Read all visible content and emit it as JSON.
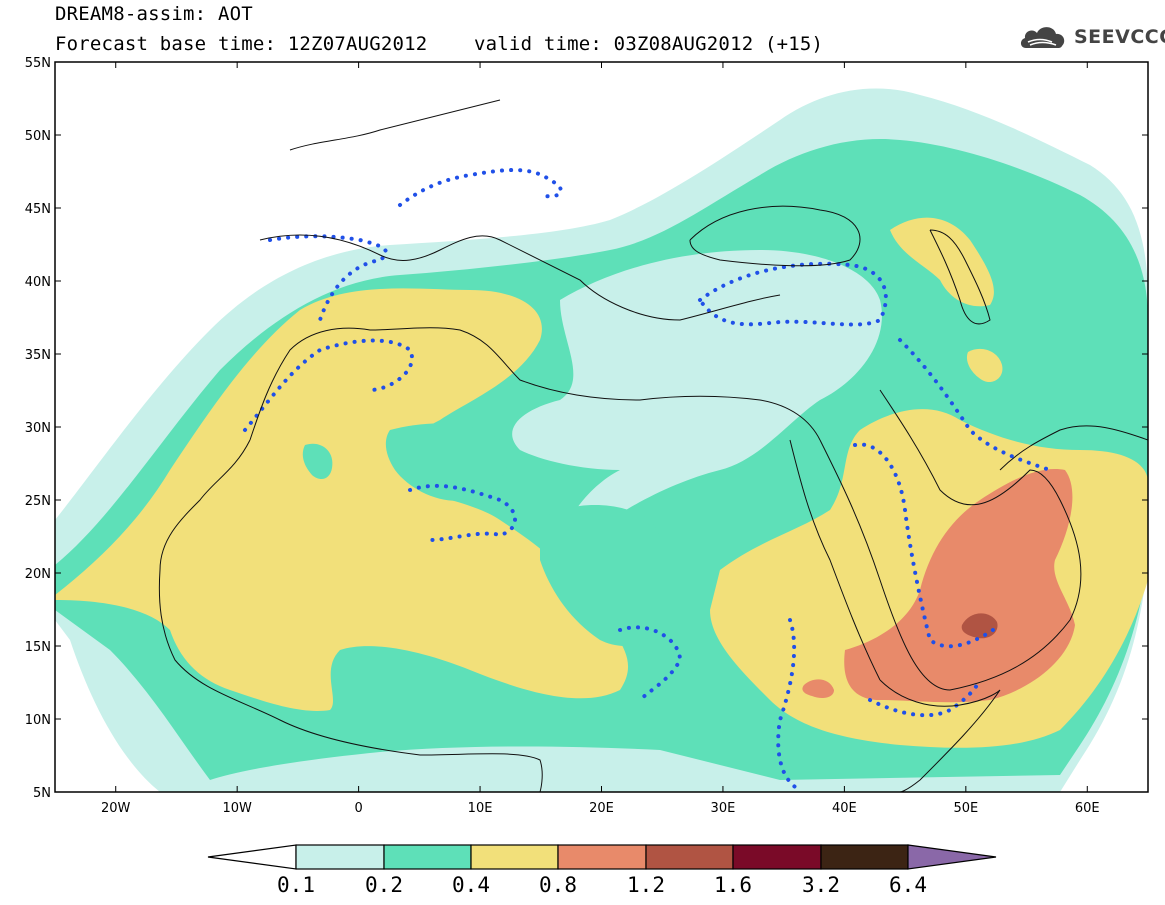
{
  "header": {
    "title": "DREAM8-assim: AOT",
    "base_time": "Forecast base time: 12Z07AUG2012",
    "valid_time": "valid time: 03Z08AUG2012 (+15)",
    "logo_text": "SEEVCCC"
  },
  "map": {
    "lat_labels": [
      "55N",
      "50N",
      "45N",
      "40N",
      "35N",
      "30N",
      "25N",
      "20N",
      "15N",
      "10N",
      "5N"
    ],
    "lon_labels": [
      "20W",
      "10W",
      "0",
      "10E",
      "20E",
      "30E",
      "40E",
      "50E",
      "60E"
    ],
    "extent": {
      "lon": [
        -25,
        65
      ],
      "lat": [
        5,
        55
      ]
    }
  },
  "colorbar": {
    "ticks": [
      "0.1",
      "0.2",
      "0.4",
      "0.8",
      "1.2",
      "1.6",
      "3.2",
      "6.4"
    ],
    "colors": {
      "under": "#ffffff",
      "c1": "#c8f0ea",
      "c2": "#5ee0b8",
      "c3": "#f2e07a",
      "c4": "#e88a6a",
      "c5": "#b05443",
      "c6": "#7a0a28",
      "c7": "#3c2414",
      "over": "#8a68a8"
    }
  }
}
